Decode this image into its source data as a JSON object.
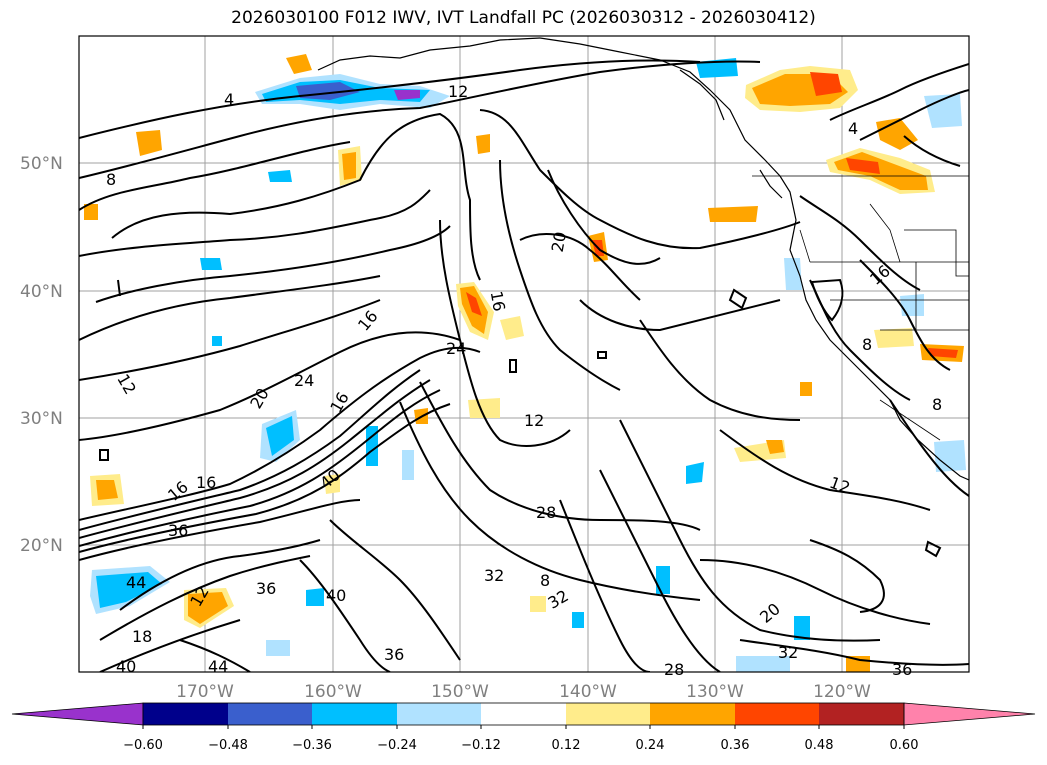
{
  "title": "2026030100 F012 IWV, IVT Landfall PC (2026030312 - 2026030412)",
  "lat_labels": [
    "50°N",
    "40°N",
    "30°N",
    "20°N"
  ],
  "lon_labels": [
    "170°W",
    "160°W",
    "150°W",
    "140°W",
    "130°W",
    "120°W"
  ],
  "colorbar": {
    "tick_labels": [
      "−0.60",
      "−0.48",
      "−0.36",
      "−0.24",
      "−0.12",
      "0.12",
      "0.24",
      "0.36",
      "0.48",
      "0.60"
    ],
    "colors": [
      "#9932cc",
      "#00008b",
      "#3a5fcd",
      "#00bfff",
      "#b0e2ff",
      "#ffffff",
      "#ffec8b",
      "#ffa500",
      "#ff4500",
      "#b22222",
      "#ff82ab"
    ]
  },
  "contour_labels": [
    "4",
    "12",
    "8",
    "20",
    "16",
    "16",
    "24",
    "12",
    "24",
    "20",
    "16",
    "12",
    "28",
    "40",
    "16",
    "16",
    "36",
    "44",
    "12",
    "36",
    "40",
    "32",
    "32",
    "8",
    "20",
    "28",
    "32",
    "36",
    "36",
    "44",
    "18",
    "40",
    "12",
    "8",
    "16",
    "8",
    "4"
  ],
  "grid": true
}
